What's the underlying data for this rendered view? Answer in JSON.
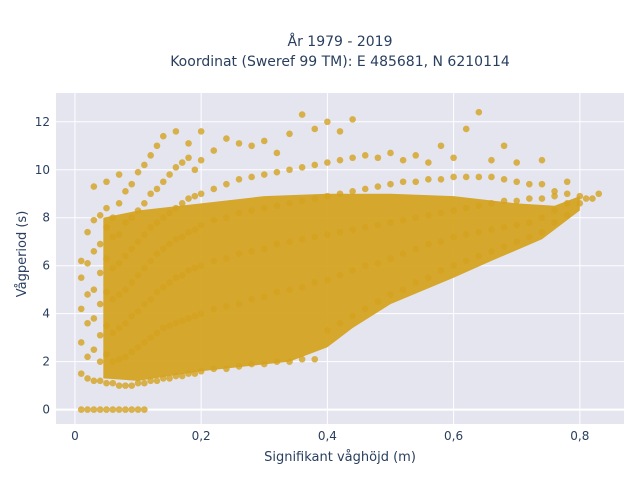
{
  "chart_data": {
    "type": "scatter",
    "title_line1": "År 1979 - 2019",
    "title_line2": "Koordinat (Sweref 99 TM): E 485681, N 6210114",
    "xlabel": "Signifikant våghöjd (m)",
    "ylabel": "Vågperiod (s)",
    "xlim": [
      -0.03,
      0.87
    ],
    "ylim": [
      -0.6,
      13.2
    ],
    "x_ticks": [
      0,
      0.2,
      0.4,
      0.6,
      0.8
    ],
    "x_tick_labels": [
      "0",
      "0,2",
      "0,4",
      "0,6",
      "0,8"
    ],
    "y_ticks": [
      0,
      2,
      4,
      6,
      8,
      10,
      12
    ],
    "y_tick_labels": [
      "0",
      "2",
      "4",
      "6",
      "8",
      "10",
      "12"
    ],
    "grid": true,
    "background": "#e5e5f0",
    "marker_color": "#d4a321",
    "series": [
      {
        "points": [
          [
            0.01,
            0.0
          ],
          [
            0.02,
            0.0
          ],
          [
            0.03,
            0.0
          ],
          [
            0.04,
            0.0
          ],
          [
            0.05,
            0.0
          ],
          [
            0.06,
            0.0
          ],
          [
            0.07,
            0.0
          ],
          [
            0.08,
            0.0
          ],
          [
            0.09,
            0.0
          ],
          [
            0.1,
            0.0
          ],
          [
            0.11,
            0.0
          ],
          [
            0.01,
            1.5
          ],
          [
            0.01,
            2.8
          ],
          [
            0.01,
            4.2
          ],
          [
            0.01,
            5.5
          ],
          [
            0.01,
            6.2
          ],
          [
            0.02,
            1.3
          ],
          [
            0.02,
            2.2
          ],
          [
            0.02,
            3.6
          ],
          [
            0.02,
            4.8
          ],
          [
            0.02,
            6.1
          ],
          [
            0.02,
            7.4
          ],
          [
            0.03,
            1.2
          ],
          [
            0.03,
            2.5
          ],
          [
            0.03,
            3.8
          ],
          [
            0.03,
            5.0
          ],
          [
            0.03,
            6.6
          ],
          [
            0.03,
            7.9
          ],
          [
            0.03,
            9.3
          ],
          [
            0.04,
            1.2
          ],
          [
            0.04,
            2.0
          ],
          [
            0.04,
            3.1
          ],
          [
            0.04,
            4.4
          ],
          [
            0.04,
            5.7
          ],
          [
            0.04,
            6.9
          ],
          [
            0.04,
            8.1
          ],
          [
            0.05,
            1.1
          ],
          [
            0.05,
            2.3
          ],
          [
            0.05,
            3.5
          ],
          [
            0.05,
            4.9
          ],
          [
            0.05,
            6.3
          ],
          [
            0.05,
            7.6
          ],
          [
            0.05,
            8.4
          ],
          [
            0.05,
            9.5
          ],
          [
            0.06,
            1.1
          ],
          [
            0.06,
            2.0
          ],
          [
            0.06,
            3.2
          ],
          [
            0.06,
            4.6
          ],
          [
            0.06,
            5.9
          ],
          [
            0.06,
            7.2
          ],
          [
            0.06,
            8.0
          ],
          [
            0.07,
            1.0
          ],
          [
            0.07,
            2.1
          ],
          [
            0.07,
            3.4
          ],
          [
            0.07,
            4.8
          ],
          [
            0.07,
            6.1
          ],
          [
            0.07,
            7.3
          ],
          [
            0.07,
            8.6
          ],
          [
            0.07,
            9.8
          ],
          [
            0.08,
            1.0
          ],
          [
            0.08,
            2.2
          ],
          [
            0.08,
            3.6
          ],
          [
            0.08,
            5.0
          ],
          [
            0.08,
            6.4
          ],
          [
            0.08,
            7.8
          ],
          [
            0.08,
            9.1
          ],
          [
            0.09,
            1.0
          ],
          [
            0.09,
            2.4
          ],
          [
            0.09,
            3.9
          ],
          [
            0.09,
            5.3
          ],
          [
            0.09,
            6.7
          ],
          [
            0.09,
            8.0
          ],
          [
            0.09,
            9.4
          ],
          [
            0.1,
            1.1
          ],
          [
            0.1,
            2.6
          ],
          [
            0.1,
            4.1
          ],
          [
            0.1,
            5.6
          ],
          [
            0.1,
            7.0
          ],
          [
            0.1,
            8.3
          ],
          [
            0.1,
            9.9
          ],
          [
            0.11,
            1.1
          ],
          [
            0.11,
            2.8
          ],
          [
            0.11,
            4.4
          ],
          [
            0.11,
            5.9
          ],
          [
            0.11,
            7.3
          ],
          [
            0.11,
            8.6
          ],
          [
            0.11,
            10.2
          ],
          [
            0.12,
            1.2
          ],
          [
            0.12,
            3.0
          ],
          [
            0.12,
            4.6
          ],
          [
            0.12,
            6.2
          ],
          [
            0.12,
            7.6
          ],
          [
            0.12,
            9.0
          ],
          [
            0.12,
            10.6
          ],
          [
            0.13,
            1.2
          ],
          [
            0.13,
            3.2
          ],
          [
            0.13,
            4.9
          ],
          [
            0.13,
            6.5
          ],
          [
            0.13,
            7.8
          ],
          [
            0.13,
            9.2
          ],
          [
            0.13,
            11.0
          ],
          [
            0.14,
            1.3
          ],
          [
            0.14,
            3.4
          ],
          [
            0.14,
            5.1
          ],
          [
            0.14,
            6.7
          ],
          [
            0.14,
            8.0
          ],
          [
            0.14,
            9.5
          ],
          [
            0.14,
            11.4
          ],
          [
            0.15,
            1.3
          ],
          [
            0.15,
            3.5
          ],
          [
            0.15,
            5.3
          ],
          [
            0.15,
            6.9
          ],
          [
            0.15,
            8.2
          ],
          [
            0.15,
            9.8
          ],
          [
            0.16,
            1.4
          ],
          [
            0.16,
            3.6
          ],
          [
            0.16,
            5.5
          ],
          [
            0.16,
            7.1
          ],
          [
            0.16,
            8.4
          ],
          [
            0.16,
            10.1
          ],
          [
            0.16,
            11.6
          ],
          [
            0.17,
            1.4
          ],
          [
            0.17,
            3.7
          ],
          [
            0.17,
            5.6
          ],
          [
            0.17,
            7.2
          ],
          [
            0.17,
            8.6
          ],
          [
            0.17,
            10.3
          ],
          [
            0.18,
            1.5
          ],
          [
            0.18,
            3.8
          ],
          [
            0.18,
            5.8
          ],
          [
            0.18,
            7.4
          ],
          [
            0.18,
            8.8
          ],
          [
            0.18,
            10.5
          ],
          [
            0.18,
            11.1
          ],
          [
            0.19,
            1.5
          ],
          [
            0.19,
            3.9
          ],
          [
            0.19,
            5.9
          ],
          [
            0.19,
            7.5
          ],
          [
            0.19,
            8.9
          ],
          [
            0.19,
            10.0
          ],
          [
            0.2,
            1.6
          ],
          [
            0.2,
            4.0
          ],
          [
            0.2,
            6.0
          ],
          [
            0.2,
            7.7
          ],
          [
            0.2,
            9.0
          ],
          [
            0.2,
            10.4
          ],
          [
            0.2,
            11.6
          ],
          [
            0.22,
            1.7
          ],
          [
            0.22,
            4.2
          ],
          [
            0.22,
            6.2
          ],
          [
            0.22,
            7.9
          ],
          [
            0.22,
            9.2
          ],
          [
            0.22,
            10.8
          ],
          [
            0.24,
            1.7
          ],
          [
            0.24,
            4.3
          ],
          [
            0.24,
            6.3
          ],
          [
            0.24,
            8.0
          ],
          [
            0.24,
            9.4
          ],
          [
            0.24,
            11.3
          ],
          [
            0.26,
            1.8
          ],
          [
            0.26,
            4.4
          ],
          [
            0.26,
            6.5
          ],
          [
            0.26,
            8.2
          ],
          [
            0.26,
            9.6
          ],
          [
            0.26,
            11.1
          ],
          [
            0.28,
            1.9
          ],
          [
            0.28,
            4.6
          ],
          [
            0.28,
            6.6
          ],
          [
            0.28,
            8.3
          ],
          [
            0.28,
            9.7
          ],
          [
            0.28,
            11.0
          ],
          [
            0.3,
            1.9
          ],
          [
            0.3,
            4.7
          ],
          [
            0.3,
            6.7
          ],
          [
            0.3,
            8.4
          ],
          [
            0.3,
            9.8
          ],
          [
            0.3,
            11.2
          ],
          [
            0.32,
            2.0
          ],
          [
            0.32,
            4.9
          ],
          [
            0.32,
            6.9
          ],
          [
            0.32,
            8.5
          ],
          [
            0.32,
            9.9
          ],
          [
            0.32,
            10.7
          ],
          [
            0.34,
            2.0
          ],
          [
            0.34,
            5.0
          ],
          [
            0.34,
            7.0
          ],
          [
            0.34,
            8.6
          ],
          [
            0.34,
            10.0
          ],
          [
            0.34,
            11.5
          ],
          [
            0.36,
            2.1
          ],
          [
            0.36,
            5.1
          ],
          [
            0.36,
            7.1
          ],
          [
            0.36,
            8.7
          ],
          [
            0.36,
            10.1
          ],
          [
            0.36,
            12.3
          ],
          [
            0.38,
            2.1
          ],
          [
            0.38,
            5.3
          ],
          [
            0.38,
            7.2
          ],
          [
            0.38,
            8.8
          ],
          [
            0.38,
            10.2
          ],
          [
            0.38,
            11.7
          ],
          [
            0.4,
            3.3
          ],
          [
            0.4,
            5.4
          ],
          [
            0.4,
            7.3
          ],
          [
            0.4,
            8.9
          ],
          [
            0.4,
            10.3
          ],
          [
            0.4,
            12.0
          ],
          [
            0.42,
            3.6
          ],
          [
            0.42,
            5.6
          ],
          [
            0.42,
            7.4
          ],
          [
            0.42,
            9.0
          ],
          [
            0.42,
            10.4
          ],
          [
            0.42,
            11.6
          ],
          [
            0.44,
            3.9
          ],
          [
            0.44,
            5.8
          ],
          [
            0.44,
            7.5
          ],
          [
            0.44,
            9.1
          ],
          [
            0.44,
            10.5
          ],
          [
            0.44,
            12.1
          ],
          [
            0.46,
            4.2
          ],
          [
            0.46,
            6.0
          ],
          [
            0.46,
            7.6
          ],
          [
            0.46,
            9.2
          ],
          [
            0.46,
            10.6
          ],
          [
            0.48,
            4.5
          ],
          [
            0.48,
            6.1
          ],
          [
            0.48,
            7.7
          ],
          [
            0.48,
            9.3
          ],
          [
            0.48,
            10.5
          ],
          [
            0.5,
            4.8
          ],
          [
            0.5,
            6.3
          ],
          [
            0.5,
            7.8
          ],
          [
            0.5,
            9.4
          ],
          [
            0.5,
            10.7
          ],
          [
            0.52,
            5.0
          ],
          [
            0.52,
            6.5
          ],
          [
            0.52,
            7.9
          ],
          [
            0.52,
            9.5
          ],
          [
            0.52,
            10.4
          ],
          [
            0.54,
            5.3
          ],
          [
            0.54,
            6.7
          ],
          [
            0.54,
            8.0
          ],
          [
            0.54,
            9.5
          ],
          [
            0.54,
            10.6
          ],
          [
            0.56,
            5.5
          ],
          [
            0.56,
            6.9
          ],
          [
            0.56,
            8.1
          ],
          [
            0.56,
            9.6
          ],
          [
            0.56,
            10.3
          ],
          [
            0.58,
            5.8
          ],
          [
            0.58,
            7.0
          ],
          [
            0.58,
            8.2
          ],
          [
            0.58,
            9.6
          ],
          [
            0.58,
            11.0
          ],
          [
            0.6,
            6.0
          ],
          [
            0.6,
            7.2
          ],
          [
            0.6,
            8.3
          ],
          [
            0.6,
            9.7
          ],
          [
            0.6,
            10.5
          ],
          [
            0.62,
            6.2
          ],
          [
            0.62,
            7.3
          ],
          [
            0.62,
            8.4
          ],
          [
            0.62,
            9.7
          ],
          [
            0.62,
            11.7
          ],
          [
            0.64,
            6.4
          ],
          [
            0.64,
            7.4
          ],
          [
            0.64,
            8.5
          ],
          [
            0.64,
            9.7
          ],
          [
            0.64,
            12.4
          ],
          [
            0.66,
            6.6
          ],
          [
            0.66,
            7.5
          ],
          [
            0.66,
            8.6
          ],
          [
            0.66,
            9.7
          ],
          [
            0.66,
            10.4
          ],
          [
            0.68,
            6.8
          ],
          [
            0.68,
            7.6
          ],
          [
            0.68,
            8.7
          ],
          [
            0.68,
            9.6
          ],
          [
            0.68,
            11.0
          ],
          [
            0.7,
            7.0
          ],
          [
            0.7,
            7.7
          ],
          [
            0.7,
            8.7
          ],
          [
            0.7,
            9.5
          ],
          [
            0.7,
            10.3
          ],
          [
            0.72,
            7.2
          ],
          [
            0.72,
            7.8
          ],
          [
            0.72,
            8.8
          ],
          [
            0.72,
            9.4
          ],
          [
            0.74,
            7.4
          ],
          [
            0.74,
            8.0
          ],
          [
            0.74,
            8.8
          ],
          [
            0.74,
            9.4
          ],
          [
            0.74,
            10.4
          ],
          [
            0.76,
            7.8
          ],
          [
            0.76,
            8.3
          ],
          [
            0.76,
            8.9
          ],
          [
            0.76,
            9.1
          ],
          [
            0.78,
            8.1
          ],
          [
            0.78,
            8.6
          ],
          [
            0.78,
            9.0
          ],
          [
            0.78,
            9.5
          ],
          [
            0.8,
            8.6
          ],
          [
            0.8,
            8.9
          ],
          [
            0.81,
            8.8
          ],
          [
            0.82,
            8.8
          ],
          [
            0.83,
            9.0
          ]
        ]
      }
    ]
  }
}
